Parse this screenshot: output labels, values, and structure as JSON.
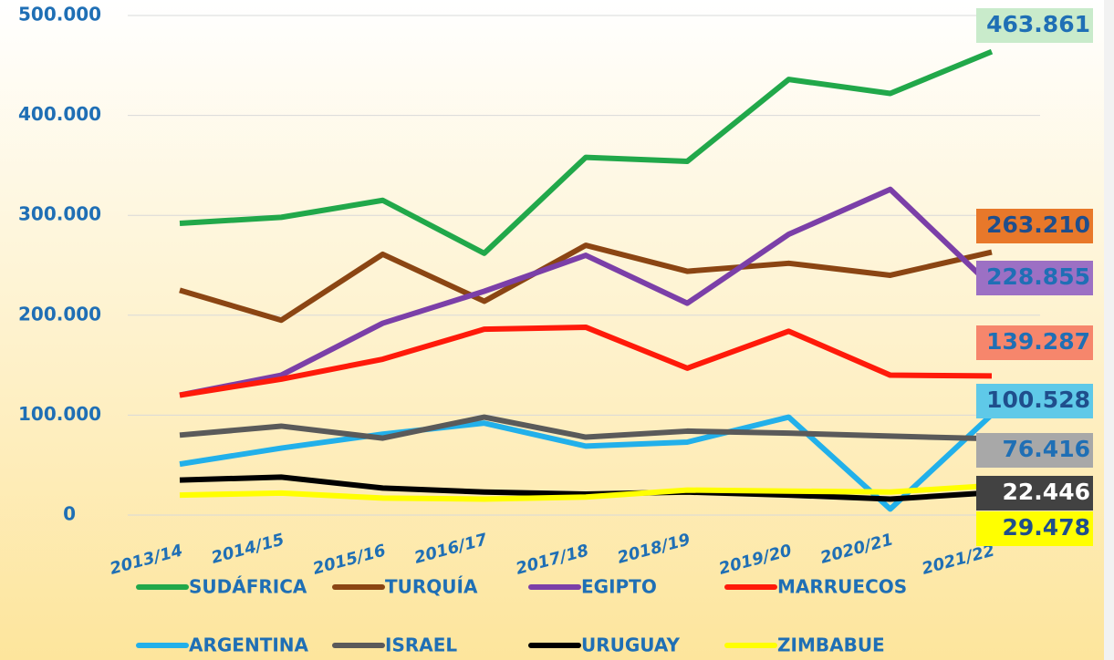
{
  "chart_data": {
    "type": "line",
    "categories": [
      "2013/14",
      "2014/15",
      "2015/16",
      "2016/17",
      "2017/18",
      "2018/19",
      "2019/20",
      "2020/21",
      "2021/22"
    ],
    "ylim": [
      0,
      500000
    ],
    "yticks": [
      0,
      {
        "value": 100000,
        "label": "100.000"
      },
      {
        "value": 200000,
        "label": "200.000"
      },
      {
        "value": 300000,
        "label": "300.000"
      },
      {
        "value": 400000,
        "label": "400.000"
      },
      {
        "value": 500000,
        "label": "500.000"
      }
    ],
    "grid": true,
    "legend": "bottom",
    "series": [
      {
        "name": "SUDÁFRICA",
        "color": "#21a84a",
        "label_bg": "#c9ebcb",
        "label_text_color": "#1f6fb5",
        "values": [
          292000,
          298000,
          315000,
          262000,
          358000,
          354000,
          436000,
          422000,
          463861
        ],
        "value_labels": [
          null,
          null,
          null,
          null,
          null,
          null,
          null,
          null,
          "463.861"
        ]
      },
      {
        "name": "TURQUÍA",
        "color": "#8b4513",
        "label_bg": "#e8782a",
        "label_text_color": "#1f4e8c",
        "values": [
          225000,
          195000,
          261000,
          214000,
          270000,
          244000,
          252000,
          240000,
          263210
        ],
        "value_labels": [
          null,
          null,
          null,
          null,
          null,
          null,
          null,
          null,
          "263.210"
        ]
      },
      {
        "name": "EGIPTO",
        "color": "#7b3fa8",
        "label_bg": "#9c70c4",
        "label_text_color": "#1f6fb5",
        "values": [
          120000,
          140000,
          192000,
          224000,
          260000,
          212000,
          281000,
          326000,
          228855
        ],
        "value_labels": [
          null,
          null,
          null,
          null,
          null,
          null,
          null,
          null,
          "228.855"
        ]
      },
      {
        "name": "MARRUECOS",
        "color": "#ff1a0a",
        "label_bg": "#f6866c",
        "label_text_color": "#1f6fb5",
        "values": [
          120000,
          136000,
          156000,
          186000,
          188000,
          147000,
          184000,
          140000,
          139287
        ],
        "value_labels": [
          null,
          null,
          null,
          null,
          null,
          null,
          null,
          null,
          "139.287"
        ]
      },
      {
        "name": "ARGENTINA",
        "color": "#22b0ea",
        "label_bg": "#5fc9e8",
        "label_text_color": "#1f4e8c",
        "values": [
          51000,
          67000,
          81000,
          92000,
          69000,
          73000,
          98000,
          6000,
          100528
        ],
        "value_labels": [
          null,
          null,
          null,
          null,
          null,
          null,
          null,
          null,
          "100.528"
        ]
      },
      {
        "name": "ISRAEL",
        "color": "#5a5a5a",
        "label_bg": "#a8a8a8",
        "label_text_color": "#1f6fb5",
        "values": [
          80000,
          89000,
          77000,
          98000,
          78000,
          84000,
          82000,
          79000,
          76416
        ],
        "value_labels": [
          null,
          null,
          null,
          null,
          null,
          null,
          null,
          null,
          "76.416"
        ]
      },
      {
        "name": "URUGUAY",
        "color": "#000000",
        "label_bg": "#424242",
        "label_text_color": "#ffffff",
        "values": [
          35000,
          38000,
          27000,
          23000,
          21000,
          23000,
          20000,
          16000,
          22446
        ],
        "value_labels": [
          null,
          null,
          null,
          null,
          null,
          null,
          null,
          null,
          "22.446"
        ]
      },
      {
        "name": "ZIMBABUE",
        "color": "#ffff00",
        "label_bg": "#ffff00",
        "label_text_color": "#1f4e8c",
        "values": [
          20000,
          22000,
          17000,
          16000,
          18000,
          25000,
          24000,
          23000,
          29478
        ],
        "value_labels": [
          null,
          null,
          null,
          null,
          null,
          null,
          null,
          null,
          "29.478"
        ]
      }
    ]
  }
}
